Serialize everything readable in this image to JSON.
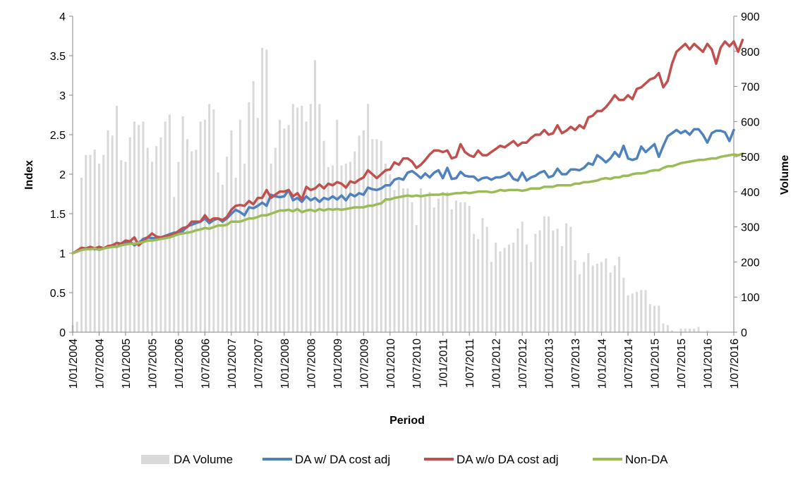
{
  "chart_data": {
    "type": "line",
    "xlabel": "Period",
    "ylabel_left": "Index",
    "ylabel_right": "Volume",
    "yleft_range": [
      0,
      4
    ],
    "yleft_ticks": [
      "0",
      "0.5",
      "1",
      "1.5",
      "2",
      "2.5",
      "3",
      "3.5",
      "4"
    ],
    "yright_range": [
      0,
      900
    ],
    "yright_ticks": [
      "0",
      "100",
      "200",
      "300",
      "400",
      "500",
      "600",
      "700",
      "800",
      "900"
    ],
    "x_ticks": [
      "1/01/2004",
      "1/07/2004",
      "1/01/2005",
      "1/07/2005",
      "1/01/2006",
      "1/07/2006",
      "1/01/2007",
      "1/07/2007",
      "1/01/2008",
      "1/07/2008",
      "1/01/2009",
      "1/07/2009",
      "1/01/2010",
      "1/07/2010",
      "1/01/2011",
      "1/07/2011",
      "1/01/2012",
      "1/07/2012",
      "1/01/2013",
      "1/07/2013",
      "1/01/2014",
      "1/07/2014",
      "1/01/2015",
      "1/07/2015",
      "1/01/2016",
      "1/07/2016"
    ],
    "grid": false,
    "legend_position": "bottom",
    "bar_series": {
      "name": "DA Volume",
      "color": "#d9d9d9",
      "axis": "right",
      "values": [
        20,
        30,
        440,
        505,
        505,
        520,
        480,
        505,
        575,
        560,
        645,
        490,
        485,
        555,
        600,
        590,
        600,
        525,
        485,
        530,
        555,
        600,
        620,
        385,
        485,
        615,
        550,
        515,
        520,
        600,
        605,
        650,
        635,
        455,
        420,
        500,
        575,
        440,
        605,
        480,
        655,
        715,
        610,
        810,
        805,
        480,
        525,
        605,
        580,
        590,
        650,
        640,
        645,
        600,
        650,
        775,
        650,
        545,
        470,
        475,
        605,
        475,
        480,
        485,
        515,
        560,
        575,
        650,
        550,
        550,
        545,
        480,
        450,
        405,
        440,
        410,
        410,
        370,
        305,
        410,
        385,
        400,
        355,
        380,
        400,
        400,
        350,
        375,
        370,
        370,
        360,
        280,
        265,
        325,
        300,
        200,
        255,
        230,
        240,
        250,
        255,
        295,
        315,
        250,
        200,
        280,
        290,
        330,
        330,
        290,
        295,
        245,
        310,
        300,
        205,
        165,
        200,
        225,
        190,
        195,
        200,
        210,
        170,
        190,
        215,
        155,
        105,
        110,
        115,
        120,
        120,
        80,
        75,
        75,
        25,
        20,
        5,
        0,
        10,
        10,
        10,
        10,
        15,
        0,
        5
      ]
    },
    "series": [
      {
        "name": "DA w/ DA cost adj",
        "color": "#4f81bd",
        "axis": "left",
        "values": [
          1.0,
          1.02,
          1.05,
          1.06,
          1.07,
          1.05,
          1.08,
          1.06,
          1.08,
          1.1,
          1.08,
          1.12,
          1.13,
          1.15,
          1.1,
          1.13,
          1.18,
          1.2,
          1.19,
          1.19,
          1.2,
          1.22,
          1.24,
          1.26,
          1.26,
          1.28,
          1.34,
          1.36,
          1.38,
          1.4,
          1.44,
          1.38,
          1.42,
          1.44,
          1.4,
          1.44,
          1.5,
          1.55,
          1.52,
          1.48,
          1.58,
          1.57,
          1.6,
          1.64,
          1.6,
          1.74,
          1.72,
          1.71,
          1.72,
          1.8,
          1.67,
          1.7,
          1.65,
          1.72,
          1.67,
          1.7,
          1.65,
          1.7,
          1.68,
          1.72,
          1.68,
          1.73,
          1.67,
          1.75,
          1.72,
          1.76,
          1.74,
          1.83,
          1.81,
          1.8,
          1.82,
          1.86,
          1.86,
          1.93,
          1.95,
          1.93,
          2.02,
          2.04,
          2.0,
          1.95,
          2.01,
          1.96,
          2.02,
          2.05,
          1.95,
          2.08,
          1.94,
          1.95,
          2.03,
          1.98,
          1.97,
          1.97,
          1.92,
          1.95,
          1.96,
          1.93,
          1.96,
          1.96,
          1.98,
          2.02,
          1.94,
          1.92,
          2.02,
          1.92,
          1.96,
          1.98,
          2.02,
          2.04,
          1.96,
          1.98,
          2.07,
          2.0,
          2.0,
          2.06,
          2.06,
          2.05,
          2.08,
          2.14,
          2.12,
          2.24,
          2.2,
          2.15,
          2.2,
          2.28,
          2.22,
          2.36,
          2.2,
          2.18,
          2.2,
          2.35,
          2.28,
          2.33,
          2.38,
          2.22,
          2.36,
          2.48,
          2.52,
          2.56,
          2.52,
          2.55,
          2.5,
          2.57,
          2.57,
          2.5,
          2.4,
          2.52,
          2.55,
          2.55,
          2.53,
          2.42,
          2.56
        ]
      },
      {
        "name": "DA w/o DA cost adj",
        "color": "#c0504d",
        "axis": "left",
        "values": [
          1.0,
          1.03,
          1.07,
          1.06,
          1.08,
          1.06,
          1.08,
          1.06,
          1.09,
          1.1,
          1.13,
          1.12,
          1.16,
          1.15,
          1.2,
          1.1,
          1.15,
          1.2,
          1.25,
          1.21,
          1.2,
          1.21,
          1.23,
          1.24,
          1.28,
          1.32,
          1.33,
          1.4,
          1.4,
          1.4,
          1.48,
          1.41,
          1.44,
          1.44,
          1.42,
          1.46,
          1.55,
          1.6,
          1.61,
          1.6,
          1.66,
          1.62,
          1.7,
          1.7,
          1.8,
          1.7,
          1.74,
          1.78,
          1.78,
          1.8,
          1.72,
          1.76,
          1.68,
          1.84,
          1.8,
          1.82,
          1.87,
          1.82,
          1.88,
          1.86,
          1.9,
          1.88,
          1.83,
          1.91,
          1.89,
          1.93,
          1.96,
          2.05,
          2.0,
          1.95,
          2.0,
          2.05,
          2.06,
          2.15,
          2.12,
          2.2,
          2.2,
          2.16,
          2.08,
          2.12,
          2.18,
          2.25,
          2.3,
          2.3,
          2.28,
          2.3,
          2.2,
          2.22,
          2.38,
          2.28,
          2.24,
          2.22,
          2.3,
          2.24,
          2.24,
          2.28,
          2.32,
          2.36,
          2.34,
          2.38,
          2.42,
          2.36,
          2.4,
          2.4,
          2.46,
          2.5,
          2.5,
          2.56,
          2.5,
          2.52,
          2.62,
          2.52,
          2.55,
          2.6,
          2.56,
          2.62,
          2.58,
          2.72,
          2.74,
          2.8,
          2.8,
          2.85,
          2.92,
          3.0,
          2.94,
          2.94,
          3.0,
          2.95,
          3.08,
          3.1,
          3.15,
          3.2,
          3.22,
          3.28,
          3.1,
          3.18,
          3.4,
          3.55,
          3.6,
          3.65,
          3.58,
          3.65,
          3.6,
          3.55,
          3.65,
          3.58,
          3.4,
          3.6,
          3.68,
          3.62,
          3.68,
          3.55,
          3.7
        ]
      },
      {
        "name": "Non-DA",
        "color": "#9bbb59",
        "axis": "left",
        "values": [
          1.0,
          1.02,
          1.04,
          1.05,
          1.05,
          1.06,
          1.04,
          1.06,
          1.07,
          1.08,
          1.08,
          1.1,
          1.11,
          1.12,
          1.12,
          1.13,
          1.14,
          1.16,
          1.16,
          1.17,
          1.18,
          1.19,
          1.2,
          1.22,
          1.24,
          1.25,
          1.26,
          1.27,
          1.29,
          1.3,
          1.32,
          1.31,
          1.33,
          1.35,
          1.35,
          1.36,
          1.4,
          1.4,
          1.4,
          1.42,
          1.44,
          1.44,
          1.46,
          1.48,
          1.48,
          1.5,
          1.52,
          1.54,
          1.54,
          1.55,
          1.53,
          1.56,
          1.52,
          1.54,
          1.55,
          1.53,
          1.56,
          1.54,
          1.56,
          1.55,
          1.56,
          1.55,
          1.56,
          1.57,
          1.58,
          1.58,
          1.58,
          1.6,
          1.6,
          1.62,
          1.63,
          1.68,
          1.68,
          1.7,
          1.71,
          1.72,
          1.73,
          1.72,
          1.73,
          1.72,
          1.73,
          1.74,
          1.74,
          1.74,
          1.75,
          1.74,
          1.75,
          1.76,
          1.76,
          1.77,
          1.76,
          1.77,
          1.78,
          1.78,
          1.78,
          1.77,
          1.78,
          1.8,
          1.79,
          1.8,
          1.8,
          1.8,
          1.79,
          1.8,
          1.82,
          1.82,
          1.82,
          1.84,
          1.84,
          1.84,
          1.86,
          1.86,
          1.86,
          1.86,
          1.88,
          1.88,
          1.9,
          1.9,
          1.91,
          1.92,
          1.94,
          1.95,
          1.94,
          1.96,
          1.96,
          1.98,
          1.98,
          2.0,
          2.01,
          2.01,
          2.02,
          2.04,
          2.05,
          2.05,
          2.08,
          2.1,
          2.1,
          2.12,
          2.14,
          2.15,
          2.16,
          2.17,
          2.18,
          2.18,
          2.19,
          2.2,
          2.2,
          2.22,
          2.23,
          2.24,
          2.25,
          2.24,
          2.26
        ]
      }
    ]
  }
}
